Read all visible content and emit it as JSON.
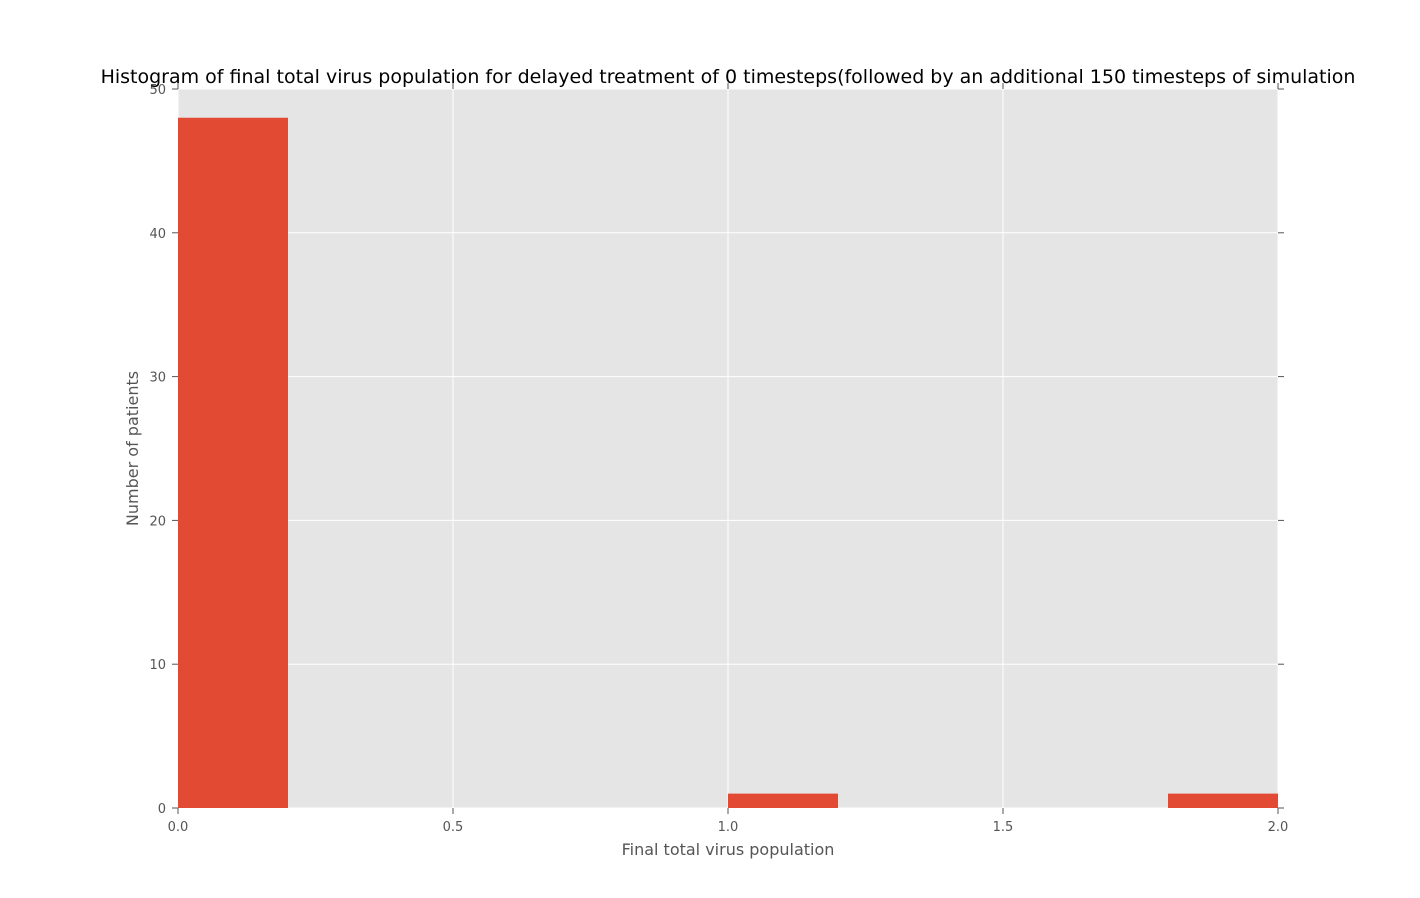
{
  "chart_data": {
    "type": "bar",
    "title": "Histogram of final total virus population for delayed treatment of 0 timesteps(followed by an additional 150 timesteps of simulation",
    "xlabel": "Final total virus population",
    "ylabel": "Number of patients",
    "xlim": [
      0.0,
      2.0
    ],
    "ylim": [
      0,
      50
    ],
    "xticks": [
      "0.0",
      "0.5",
      "1.0",
      "1.5",
      "2.0"
    ],
    "yticks": [
      "0",
      "10",
      "20",
      "30",
      "40",
      "50"
    ],
    "bins": [
      {
        "x0": 0.0,
        "x1": 0.2,
        "count": 48
      },
      {
        "x0": 0.2,
        "x1": 0.4,
        "count": 0
      },
      {
        "x0": 0.4,
        "x1": 0.6,
        "count": 0
      },
      {
        "x0": 0.6,
        "x1": 0.8,
        "count": 0
      },
      {
        "x0": 0.8,
        "x1": 1.0,
        "count": 0
      },
      {
        "x0": 1.0,
        "x1": 1.2,
        "count": 1
      },
      {
        "x0": 1.2,
        "x1": 1.4,
        "count": 0
      },
      {
        "x0": 1.4,
        "x1": 1.6,
        "count": 0
      },
      {
        "x0": 1.6,
        "x1": 1.8,
        "count": 0
      },
      {
        "x0": 1.8,
        "x1": 2.0,
        "count": 1
      }
    ],
    "grid": true,
    "colors": {
      "bar": "#E24A33",
      "plot_background": "#E5E5E5",
      "grid": "#FFFFFF"
    }
  }
}
